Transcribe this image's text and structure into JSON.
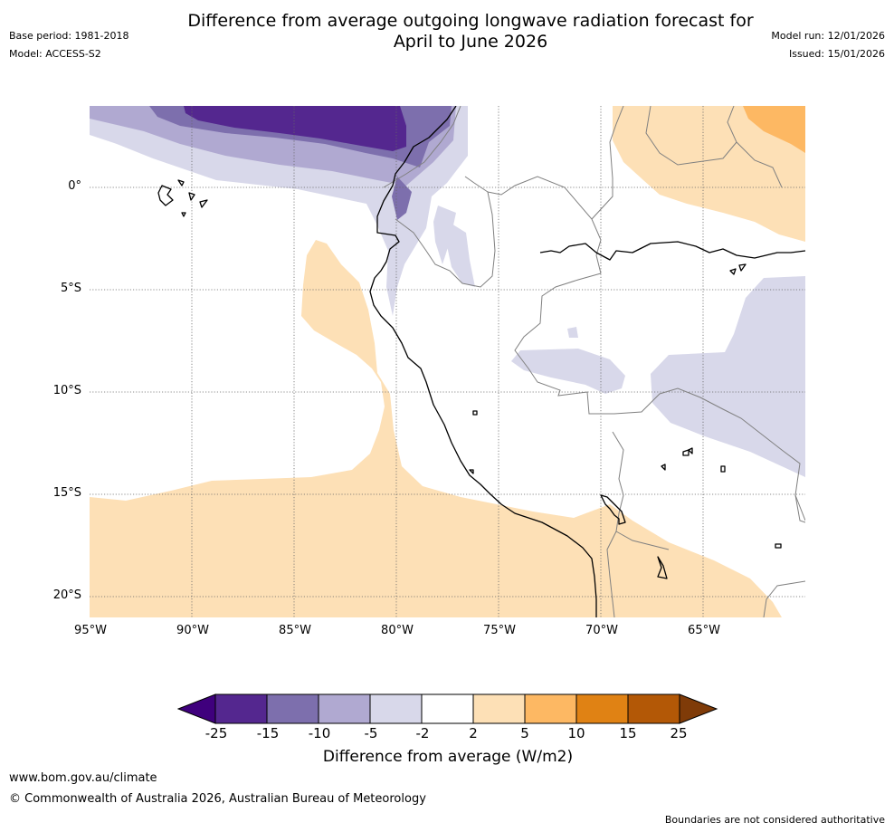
{
  "header": {
    "title_line1": "Difference from average outgoing longwave radiation forecast for",
    "title_line2": "April to June 2026",
    "base_period": "Base period: 1981-2018",
    "model": "Model: ACCESS-S2",
    "model_run": "Model run: 12/01/2026",
    "issued": "Issued: 15/01/2026"
  },
  "map": {
    "lat_labels": [
      "0°",
      "5°S",
      "10°S",
      "15°S",
      "20°S"
    ],
    "lon_labels": [
      "95°W",
      "90°W",
      "85°W",
      "80°W",
      "75°W",
      "70°W",
      "65°W"
    ]
  },
  "colorbar": {
    "ticks": [
      "-25",
      "-15",
      "-10",
      "-5",
      "-2",
      "2",
      "5",
      "10",
      "15",
      "25"
    ],
    "colors": [
      "#3f007d",
      "#54278f",
      "#7d6fad",
      "#b0a9d1",
      "#d8d8ea",
      "#ffffff",
      "#fde0b6",
      "#fdb863",
      "#e08214",
      "#b35806",
      "#7f3b08"
    ],
    "label": "Difference from average (W/m2)"
  },
  "footer": {
    "url": "www.bom.gov.au/climate",
    "copyright": "© Commonwealth of Australia 2026, Australian Bureau of Meteorology",
    "disclaimer": "Boundaries are not considered authoritative"
  }
}
